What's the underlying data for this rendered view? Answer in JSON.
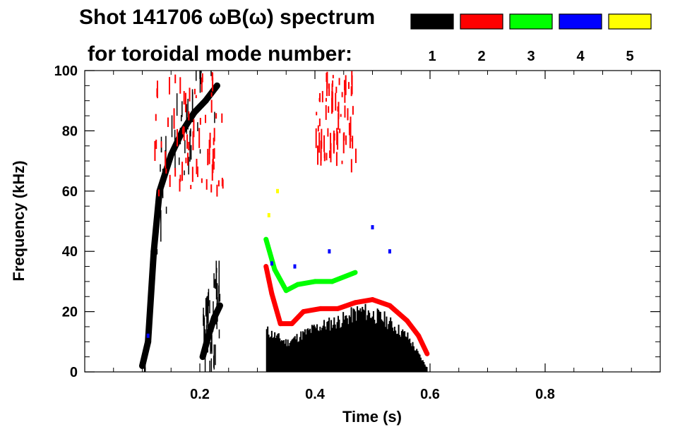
{
  "chart_data": {
    "type": "heatmap",
    "title_line1": "Shot 141706 ωB(ω) spectrum",
    "title_line2": "for toroidal mode number:",
    "xlabel": "Time (s)",
    "ylabel": "Frequency (kHz)",
    "xlim": [
      0.0,
      1.0
    ],
    "ylim": [
      0,
      100
    ],
    "x_ticks": [
      0.2,
      0.4,
      0.6,
      0.8
    ],
    "y_ticks": [
      0,
      20,
      40,
      60,
      80,
      100
    ],
    "x_tick_labels": [
      "0.2",
      "0.4",
      "0.6",
      "0.8"
    ],
    "y_tick_labels": [
      "0",
      "20",
      "40",
      "60",
      "80",
      "100"
    ],
    "legend": [
      {
        "label": "1",
        "color": "#000000"
      },
      {
        "label": "2",
        "color": "#ff0000"
      },
      {
        "label": "3",
        "color": "#00ff00"
      },
      {
        "label": "4",
        "color": "#0000ff"
      },
      {
        "label": "5",
        "color": "#ffff00"
      }
    ],
    "series": [
      {
        "mode": "1",
        "color": "#000000",
        "regions": [
          {
            "t0": 0.315,
            "t1": 0.595,
            "f_low": 0,
            "f_high_profile": [
              [
                0.315,
                14
              ],
              [
                0.35,
                10
              ],
              [
                0.4,
                15
              ],
              [
                0.45,
                18
              ],
              [
                0.48,
                21
              ],
              [
                0.52,
                18
              ],
              [
                0.56,
                12
              ],
              [
                0.595,
                1
              ]
            ]
          },
          {
            "trace": [
              [
                0.1,
                2
              ],
              [
                0.11,
                10
              ],
              [
                0.12,
                40
              ],
              [
                0.13,
                60
              ],
              [
                0.15,
                72
              ],
              [
                0.17,
                80
              ],
              [
                0.19,
                86
              ],
              [
                0.21,
                90
              ],
              [
                0.23,
                95
              ]
            ]
          },
          {
            "trace": [
              [
                0.205,
                5
              ],
              [
                0.215,
                12
              ],
              [
                0.225,
                18
              ],
              [
                0.235,
                22
              ]
            ]
          }
        ]
      },
      {
        "mode": "2",
        "color": "#ff0000",
        "trace": [
          [
            0.315,
            35
          ],
          [
            0.325,
            26
          ],
          [
            0.34,
            16
          ],
          [
            0.36,
            16
          ],
          [
            0.38,
            20
          ],
          [
            0.41,
            21
          ],
          [
            0.44,
            21
          ],
          [
            0.47,
            23
          ],
          [
            0.5,
            24
          ],
          [
            0.53,
            22
          ],
          [
            0.56,
            17
          ],
          [
            0.58,
            12
          ],
          [
            0.595,
            6
          ]
        ],
        "regions": [
          {
            "t0": 0.12,
            "t1": 0.24,
            "f0": 60,
            "f1": 100
          },
          {
            "t0": 0.4,
            "t1": 0.47,
            "f0": 70,
            "f1": 100
          }
        ]
      },
      {
        "mode": "3",
        "color": "#00ff00",
        "trace": [
          [
            0.315,
            44
          ],
          [
            0.33,
            34
          ],
          [
            0.35,
            27
          ],
          [
            0.37,
            29
          ],
          [
            0.4,
            30
          ],
          [
            0.43,
            30
          ],
          [
            0.47,
            33
          ]
        ]
      },
      {
        "mode": "4",
        "color": "#0000ff",
        "points": [
          [
            0.11,
            12
          ],
          [
            0.325,
            36
          ],
          [
            0.365,
            35
          ],
          [
            0.425,
            40
          ],
          [
            0.5,
            48
          ],
          [
            0.53,
            40
          ]
        ]
      },
      {
        "mode": "5",
        "color": "#ffff00",
        "points": [
          [
            0.32,
            52
          ],
          [
            0.335,
            60
          ]
        ]
      }
    ]
  }
}
